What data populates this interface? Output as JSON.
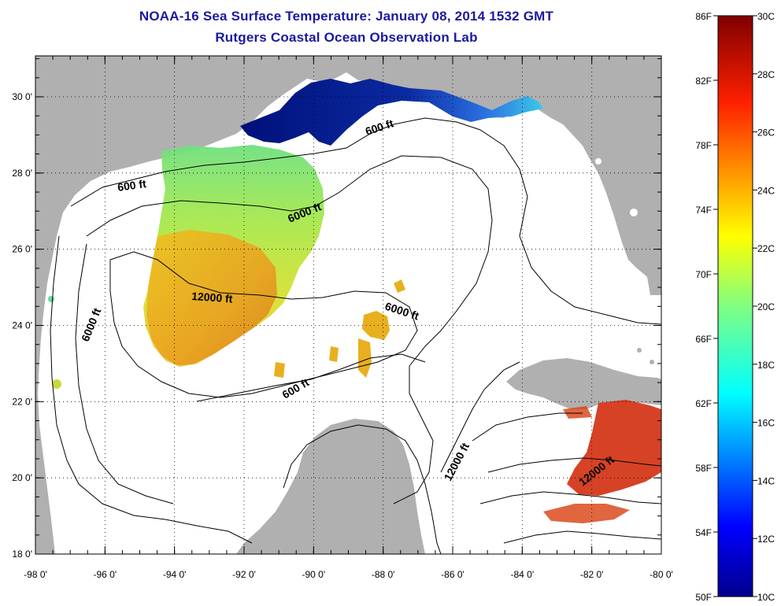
{
  "title": {
    "line1": "NOAA-16 Sea Surface Temperature:  January 08, 2014 1532 GMT",
    "line2": "Rutgers Coastal Ocean Observation Lab"
  },
  "axes": {
    "lon_ticks": [
      "-98 0'",
      "-96 0'",
      "-94 0'",
      "-92 0'",
      "-90 0'",
      "-88 0'",
      "-86 0'",
      "-84 0'",
      "-82 0'",
      "-80 0'"
    ],
    "lat_ticks": [
      "30 0'",
      "28 0'",
      "26 0'",
      "24 0'",
      "22 0'",
      "20 0'",
      "18 0'"
    ]
  },
  "contours": {
    "c600_north": "600 ft",
    "c600_west": "600 ft",
    "c6000_north": "6000 ft",
    "c6000_west": "6000 ft",
    "c12000_center": "12000 ft",
    "c6000_center": "6000 ft",
    "c600_south": "600 ft",
    "c12000_southeast": "12000 ft",
    "c12000_caribbean": "12000 ft"
  },
  "colorbar": {
    "fahrenheit": [
      "86F",
      "82F",
      "78F",
      "74F",
      "70F",
      "66F",
      "62F",
      "58F",
      "54F",
      "50F"
    ],
    "celsius": [
      "30C",
      "28C",
      "26C",
      "24C",
      "22C",
      "20C",
      "18C",
      "16C",
      "14C",
      "12C",
      "10C"
    ]
  },
  "colors": {
    "land": "#b0b0b0",
    "ocean": "#ffffff",
    "title": "#1a1aa0",
    "sst_cold": "#00107a",
    "sst_cool": "#2ab4e8",
    "sst_mild": "#b4e83c",
    "sst_warm": "#f0c828",
    "sst_hot": "#d23214"
  }
}
